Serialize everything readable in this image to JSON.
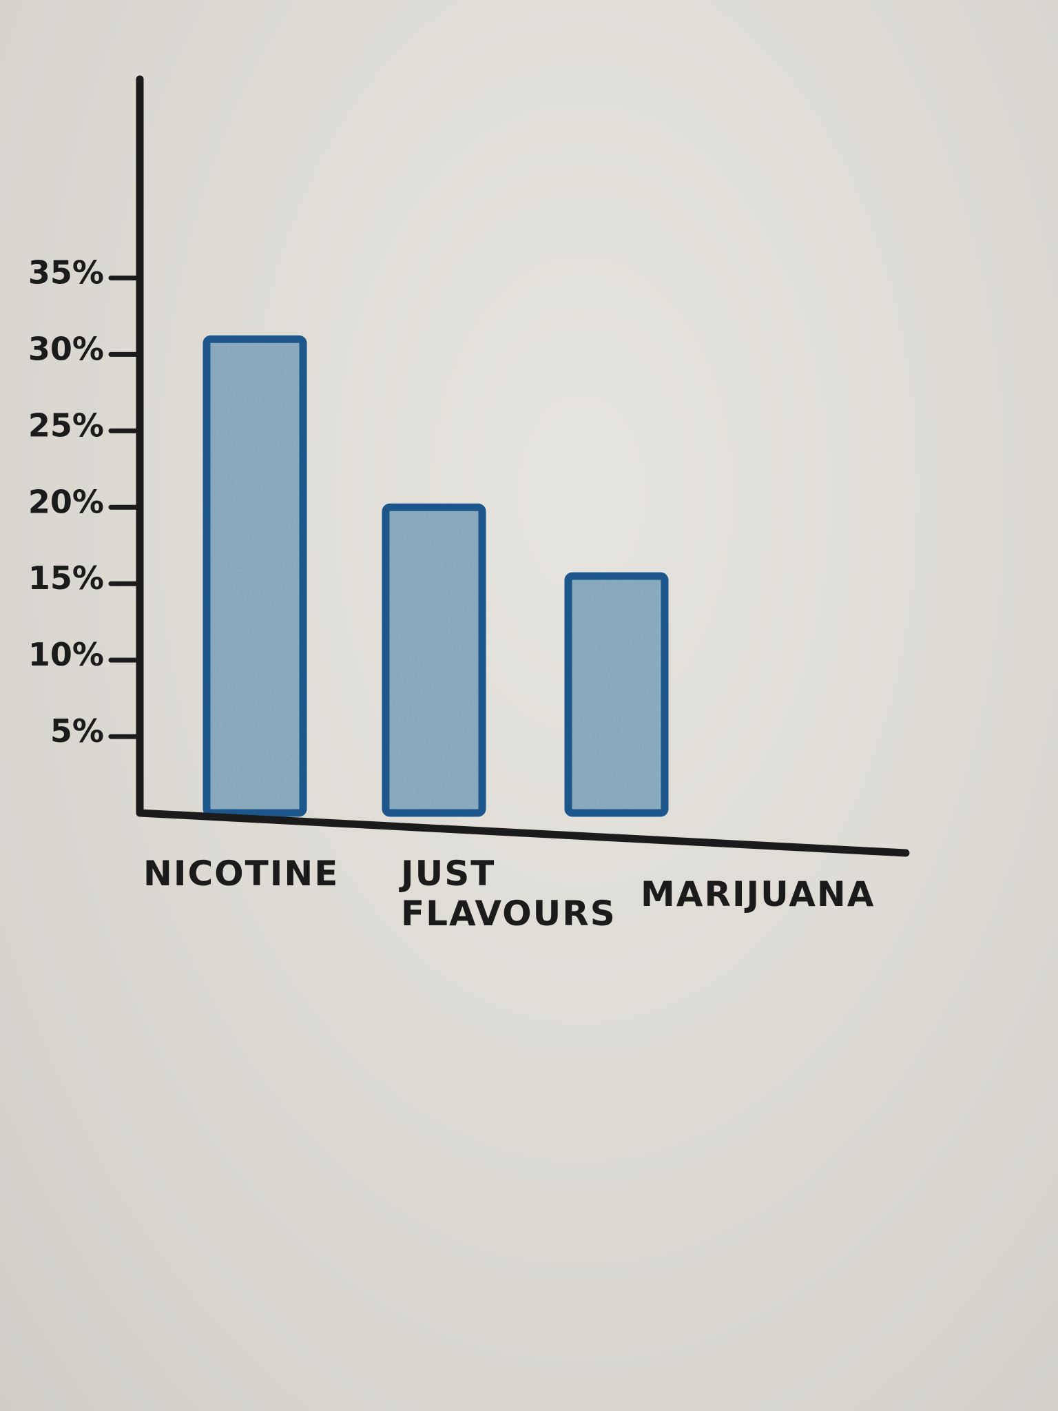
{
  "chart_data": {
    "type": "bar",
    "categories": [
      "NICOTINE",
      "JUST FLAVOURS",
      "MARIJUANA"
    ],
    "category_lines": [
      [
        "NICOTINE"
      ],
      [
        "JUST",
        "FLAVOURS"
      ],
      [
        "MARIJUANA"
      ]
    ],
    "values": [
      31,
      20,
      15.5
    ],
    "yticks": [
      5,
      10,
      15,
      20,
      25,
      30,
      35
    ],
    "ytick_labels": [
      "5%",
      "10%",
      "15%",
      "20%",
      "25%",
      "30%",
      "35%"
    ],
    "ylim": [
      0,
      48
    ],
    "title": "",
    "xlabel": "",
    "ylabel": "",
    "grid": false,
    "legend": "none",
    "colors": {
      "bar_fill": "#8fb0c4",
      "bar_outline": "#1f5a91",
      "axis": "#1b1b1b"
    }
  }
}
